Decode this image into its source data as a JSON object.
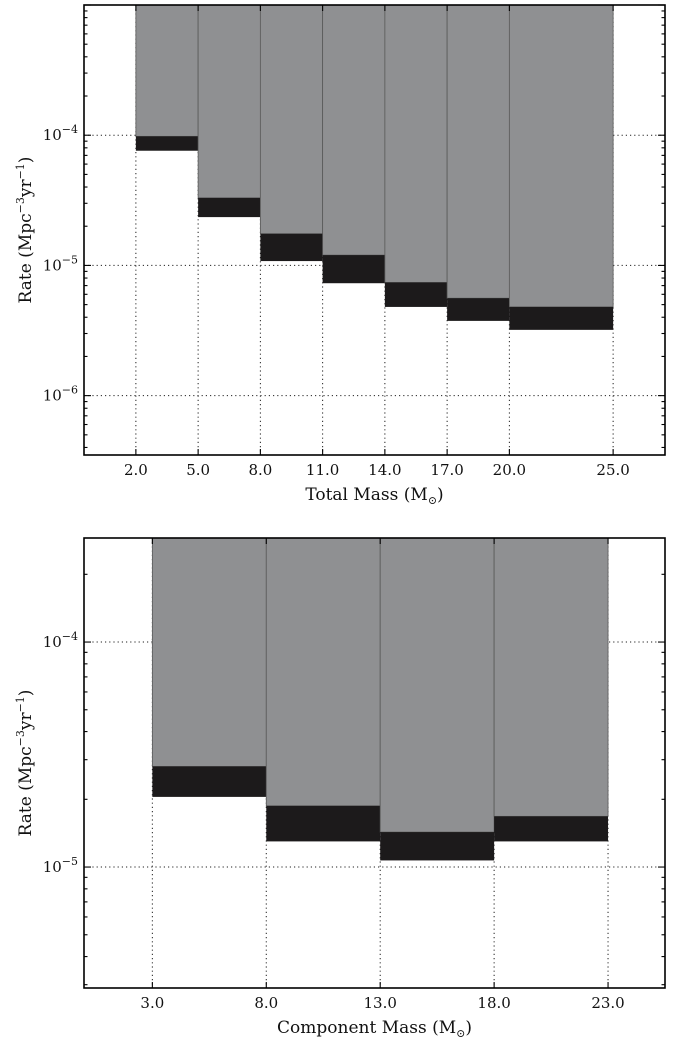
{
  "chart_data": [
    {
      "type": "bar",
      "xlabel": "Total Mass (M",
      "xlabel_sub": "⊙",
      "xlabel_close": ")",
      "ylabel": "Rate (Mpc",
      "ylabel_exp1": "−3",
      "ylabel_mid": "yr",
      "ylabel_exp2": "−1",
      "ylabel_close": ")",
      "yscale": "log",
      "ylim": [
        3.5e-07,
        0.001
      ],
      "xlim": [
        -0.5,
        27.5
      ],
      "grid": true,
      "x_ticks": [
        2.0,
        5.0,
        8.0,
        11.0,
        14.0,
        17.0,
        20.0,
        25.0
      ],
      "x_tick_labels": [
        "2.0",
        "5.0",
        "8.0",
        "11.0",
        "14.0",
        "17.0",
        "20.0",
        "25.0"
      ],
      "y_ticks": [
        0.0001,
        1e-05,
        1e-06
      ],
      "y_tick_base": "10",
      "y_tick_exps": [
        "−4",
        "−5",
        "−6"
      ],
      "bins": [
        {
          "x0": 2.0,
          "x1": 5.0,
          "low": 7.6e-05,
          "high": 9.8e-05
        },
        {
          "x0": 5.0,
          "x1": 8.0,
          "low": 2.35e-05,
          "high": 3.3e-05
        },
        {
          "x0": 8.0,
          "x1": 11.0,
          "low": 1.08e-05,
          "high": 1.75e-05
        },
        {
          "x0": 11.0,
          "x1": 14.0,
          "low": 7.3e-06,
          "high": 1.2e-05
        },
        {
          "x0": 14.0,
          "x1": 17.0,
          "low": 4.8e-06,
          "high": 7.4e-06
        },
        {
          "x0": 17.0,
          "x1": 20.0,
          "low": 3.75e-06,
          "high": 5.6e-06
        },
        {
          "x0": 20.0,
          "x1": 25.0,
          "low": 3.2e-06,
          "high": 4.8e-06
        }
      ]
    },
    {
      "type": "bar",
      "xlabel": "Component Mass (M",
      "xlabel_sub": "⊙",
      "xlabel_close": ")",
      "ylabel": "Rate (Mpc",
      "ylabel_exp1": "−3",
      "ylabel_mid": "yr",
      "ylabel_exp2": "−1",
      "ylabel_close": ")",
      "yscale": "log",
      "ylim": [
        2.9e-06,
        0.00029
      ],
      "xlim": [
        0.0,
        25.5
      ],
      "grid": true,
      "x_ticks": [
        3.0,
        8.0,
        13.0,
        18.0,
        23.0
      ],
      "x_tick_labels": [
        "3.0",
        "8.0",
        "13.0",
        "18.0",
        "23.0"
      ],
      "y_ticks": [
        0.0001,
        1e-05
      ],
      "y_tick_base": "10",
      "y_tick_exps": [
        "−4",
        "−5"
      ],
      "bins": [
        {
          "x0": 3.0,
          "x1": 8.0,
          "low": 2.05e-05,
          "high": 2.8e-05
        },
        {
          "x0": 8.0,
          "x1": 13.0,
          "low": 1.3e-05,
          "high": 1.87e-05
        },
        {
          "x0": 13.0,
          "x1": 18.0,
          "low": 1.07e-05,
          "high": 1.43e-05
        },
        {
          "x0": 18.0,
          "x1": 23.0,
          "low": 1.3e-05,
          "high": 1.68e-05
        }
      ]
    }
  ]
}
